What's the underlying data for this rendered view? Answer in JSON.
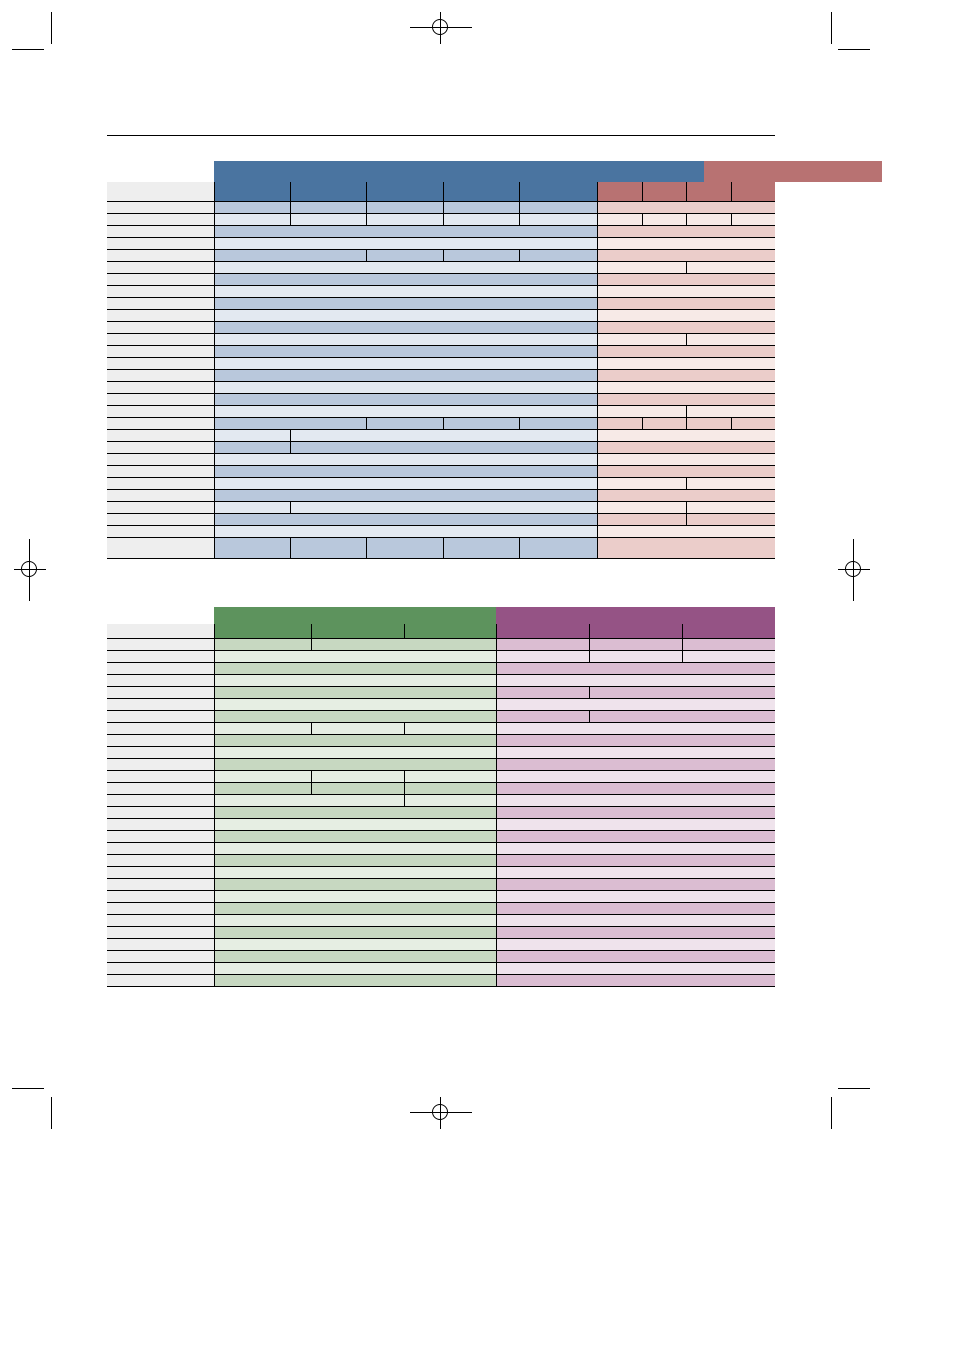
{
  "page": {
    "colors": {
      "blue_header": "#4a74a0",
      "blue_dark": "#b9c8dc",
      "blue_light": "#e3e9f1",
      "red_header": "#b87272",
      "red_dark": "#ebcdca",
      "red_light": "#f7eae7",
      "green_header": "#5d935d",
      "green_dark": "#c7d8c1",
      "green_light": "#e6eee3",
      "purple_header": "#955385",
      "purple_dark": "#dbbdd2",
      "purple_light": "#efe3ec",
      "label_bg": "#eeeeee"
    },
    "marks": [
      "crop-marks",
      "registration-marks"
    ]
  },
  "table1": {
    "group_a_label": "",
    "group_b_label": "",
    "row_labels": [
      "",
      "",
      "",
      "",
      "",
      "",
      "",
      "",
      "",
      "",
      "",
      "",
      "",
      "",
      "",
      "",
      "",
      "",
      "",
      "",
      "",
      "",
      "",
      "",
      "",
      "",
      "",
      "",
      ""
    ]
  },
  "table2": {
    "group_a_label": "",
    "group_b_label": "",
    "row_labels": [
      "",
      "",
      "",
      "",
      "",
      "",
      "",
      "",
      "",
      "",
      "",
      "",
      "",
      "",
      "",
      "",
      "",
      "",
      "",
      "",
      "",
      "",
      "",
      "",
      "",
      "",
      "",
      "",
      ""
    ]
  }
}
